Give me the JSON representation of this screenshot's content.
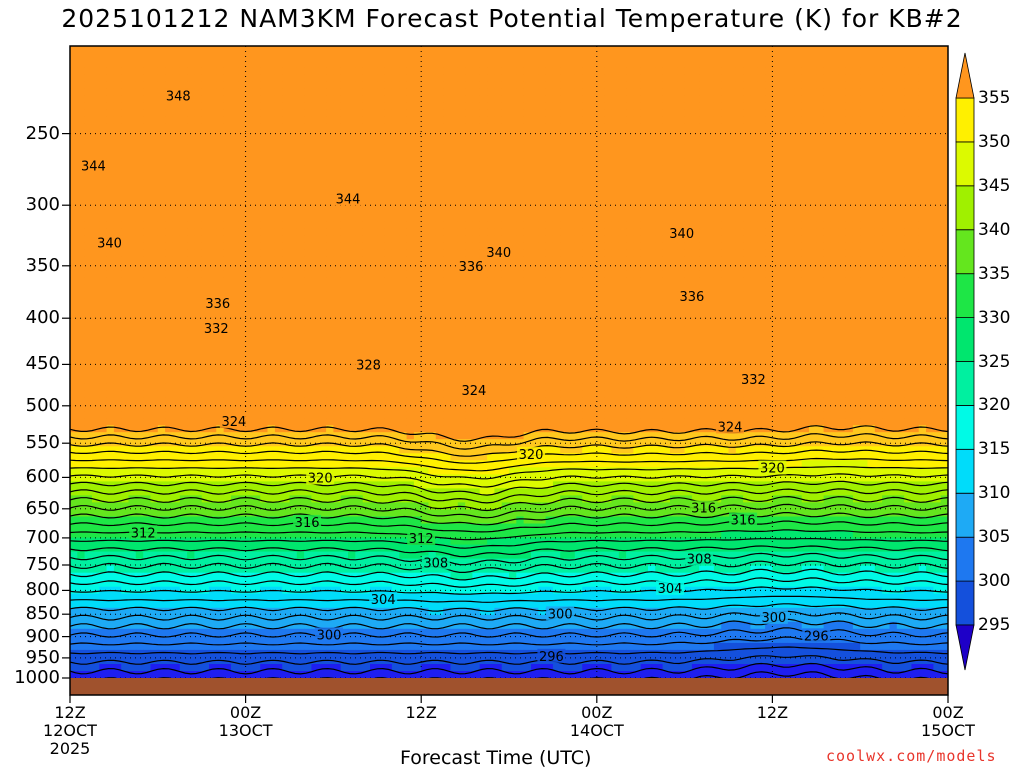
{
  "title": "2025101212 NAM3KM Forecast Potential Temperature (K) for KB#2",
  "xlabel": "Forecast Time (UTC)",
  "credit": "coolwx.com/models",
  "chart_data": {
    "type": "heatmap",
    "title": "2025101212 NAM3KM Forecast Potential Temperature (K) for KB#2",
    "xlabel": "Forecast Time (UTC)",
    "ylabel": "",
    "x_ticks": [
      {
        "hour": 0,
        "line1": "12Z",
        "line2": "12OCT",
        "line3": "2025"
      },
      {
        "hour": 12,
        "line1": "00Z",
        "line2": "13OCT"
      },
      {
        "hour": 24,
        "line1": "12Z"
      },
      {
        "hour": 36,
        "line1": "00Z",
        "line2": "14OCT"
      },
      {
        "hour": 48,
        "line1": "12Z"
      },
      {
        "hour": 60,
        "line1": "00Z",
        "line2": "15OCT"
      }
    ],
    "xlim_hours": [
      0,
      60
    ],
    "y_levels": [
      1000,
      950,
      900,
      850,
      800,
      750,
      700,
      650,
      600,
      550,
      500,
      450,
      400,
      350,
      300,
      250
    ],
    "ylim": [
      1020,
      200
    ],
    "y_scale": "log",
    "colorbar": {
      "ticks": [
        295,
        300,
        305,
        310,
        315,
        320,
        325,
        330,
        335,
        340,
        345,
        350,
        355
      ],
      "min": 290,
      "max": 360,
      "colors": [
        "#1e00c8",
        "#1e1ef0",
        "#1450dc",
        "#1e78f0",
        "#1eaaf5",
        "#00dcfa",
        "#00fae6",
        "#00f0a0",
        "#00e66e",
        "#1ee646",
        "#64e61e",
        "#a0f000",
        "#dcfa00",
        "#fff000",
        "#ffc81e",
        "#ff961e"
      ]
    },
    "contour_labels": [
      {
        "value": "348",
        "t": 7.4,
        "p": 227
      },
      {
        "value": "344",
        "t": 1.6,
        "p": 271
      },
      {
        "value": "344",
        "t": 19.0,
        "p": 295
      },
      {
        "value": "340",
        "t": 2.7,
        "p": 330
      },
      {
        "value": "340",
        "t": 29.3,
        "p": 338
      },
      {
        "value": "340",
        "t": 41.8,
        "p": 322
      },
      {
        "value": "336",
        "t": 27.4,
        "p": 350
      },
      {
        "value": "336",
        "t": 10.1,
        "p": 385
      },
      {
        "value": "336",
        "t": 42.5,
        "p": 378
      },
      {
        "value": "332",
        "t": 10.0,
        "p": 410
      },
      {
        "value": "332",
        "t": 46.7,
        "p": 467
      },
      {
        "value": "328",
        "t": 20.4,
        "p": 450
      },
      {
        "value": "324",
        "t": 27.6,
        "p": 480
      },
      {
        "value": "324",
        "t": 11.2,
        "p": 520
      },
      {
        "value": "324",
        "t": 45.1,
        "p": 527
      },
      {
        "value": "320",
        "t": 31.5,
        "p": 565
      },
      {
        "value": "320",
        "t": 17.1,
        "p": 600
      },
      {
        "value": "320",
        "t": 48.0,
        "p": 585
      },
      {
        "value": "316",
        "t": 16.2,
        "p": 672
      },
      {
        "value": "316",
        "t": 43.3,
        "p": 648
      },
      {
        "value": "316",
        "t": 46.0,
        "p": 668
      },
      {
        "value": "312",
        "t": 5.0,
        "p": 690
      },
      {
        "value": "312",
        "t": 24.0,
        "p": 700
      },
      {
        "value": "308",
        "t": 25.0,
        "p": 745
      },
      {
        "value": "308",
        "t": 43.0,
        "p": 738
      },
      {
        "value": "304",
        "t": 21.4,
        "p": 818
      },
      {
        "value": "304",
        "t": 41.0,
        "p": 795
      },
      {
        "value": "300",
        "t": 17.7,
        "p": 895
      },
      {
        "value": "300",
        "t": 33.5,
        "p": 848
      },
      {
        "value": "300",
        "t": 48.1,
        "p": 856
      },
      {
        "value": "296",
        "t": 32.9,
        "p": 945
      },
      {
        "value": "296",
        "t": 51.0,
        "p": 897
      }
    ],
    "grid": true,
    "ground_color": "#a0522d"
  }
}
